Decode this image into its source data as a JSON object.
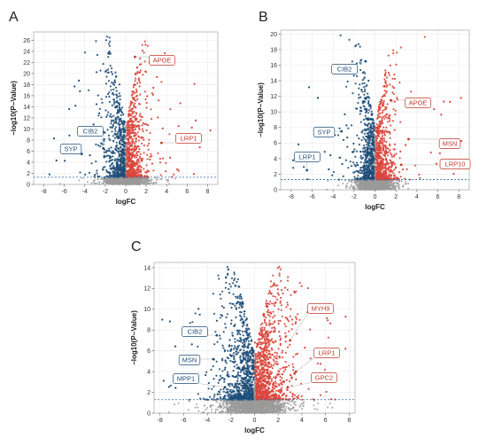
{
  "panels": [
    {
      "letter": "A",
      "xlabel": "logFC",
      "ylabel": "−log10(P−Value)",
      "xticks": [
        -8,
        -6,
        -4,
        -2,
        0,
        2,
        4,
        6,
        8
      ],
      "yticks": [
        0,
        2,
        4,
        6,
        8,
        10,
        12,
        14,
        16,
        18,
        20,
        22,
        24,
        26
      ],
      "labels": [
        {
          "text": "APOE",
          "side": "up"
        },
        {
          "text": "LRP1",
          "side": "up"
        },
        {
          "text": "CIB2",
          "side": "down"
        },
        {
          "text": "SYP",
          "side": "down"
        }
      ]
    },
    {
      "letter": "B",
      "xlabel": "logFC",
      "ylabel": "−log10(P−Value)",
      "xticks": [
        -8,
        -6,
        -4,
        -2,
        0,
        2,
        4,
        6,
        8
      ],
      "yticks": [
        0,
        2,
        4,
        6,
        8,
        10,
        12,
        14,
        16,
        18,
        20
      ],
      "labels": [
        {
          "text": "CIB2",
          "side": "down"
        },
        {
          "text": "SYP",
          "side": "down"
        },
        {
          "text": "LRP1",
          "side": "down"
        },
        {
          "text": "APOE",
          "side": "up"
        },
        {
          "text": "MSN",
          "side": "up"
        },
        {
          "text": "LRP10",
          "side": "up"
        }
      ]
    },
    {
      "letter": "C",
      "xlabel": "logFC",
      "ylabel": "−log10(P−Value)",
      "xticks": [
        -8,
        -6,
        -4,
        -2,
        0,
        2,
        4,
        6,
        8
      ],
      "yticks": [
        0,
        2,
        4,
        6,
        8,
        10,
        12,
        14
      ],
      "labels": [
        {
          "text": "CIB2",
          "side": "down"
        },
        {
          "text": "MSN",
          "side": "down"
        },
        {
          "text": "MPP1",
          "side": "down"
        },
        {
          "text": "MYH9",
          "side": "up"
        },
        {
          "text": "LRP1",
          "side": "up"
        },
        {
          "text": "GPC2",
          "side": "up"
        }
      ]
    }
  ],
  "chart_data": [
    {
      "type": "scatter",
      "panel": "A",
      "title": "",
      "xlabel": "logFC",
      "ylabel": "−log10(P−Value)",
      "xlim": [
        -9,
        9
      ],
      "ylim": [
        0,
        27.5
      ],
      "threshold_y": 1.3,
      "grid": true,
      "series": [
        {
          "group": "down",
          "color": "#1f4e79"
        },
        {
          "group": "up",
          "color": "#d9453b"
        },
        {
          "group": "ns",
          "color": "#9a9a9a"
        }
      ],
      "labeled_points": [
        {
          "gene": "APOE",
          "x": 0.9,
          "y": 23.0,
          "group": "up"
        },
        {
          "gene": "LRP1",
          "x": 3.5,
          "y": 7.5,
          "group": "up"
        },
        {
          "gene": "CIB2",
          "x": -2.2,
          "y": 6.5,
          "group": "down"
        },
        {
          "gene": "SYP",
          "x": -4.3,
          "y": 5.5,
          "group": "down"
        }
      ]
    },
    {
      "type": "scatter",
      "panel": "B",
      "title": "",
      "xlabel": "logFC",
      "ylabel": "−log10(P−Value)",
      "xlim": [
        -9,
        9
      ],
      "ylim": [
        0,
        20.5
      ],
      "threshold_y": 1.3,
      "grid": true,
      "series": [
        {
          "group": "down",
          "color": "#1f4e79"
        },
        {
          "group": "up",
          "color": "#d9453b"
        },
        {
          "group": "ns",
          "color": "#9a9a9a"
        }
      ],
      "labeled_points": [
        {
          "gene": "CIB2",
          "x": -0.9,
          "y": 16.5,
          "group": "down"
        },
        {
          "gene": "SYP",
          "x": -3.2,
          "y": 7.5,
          "group": "down"
        },
        {
          "gene": "LRP1",
          "x": -6.5,
          "y": 2.5,
          "group": "down"
        },
        {
          "gene": "APOE",
          "x": 1.5,
          "y": 11.5,
          "group": "up"
        },
        {
          "gene": "MSN",
          "x": 3.2,
          "y": 6.5,
          "group": "up"
        },
        {
          "gene": "LRP10",
          "x": 2.5,
          "y": 3.2,
          "group": "up"
        }
      ]
    },
    {
      "type": "scatter",
      "panel": "C",
      "title": "",
      "xlabel": "logFC",
      "ylabel": "−log10(P−Value)",
      "xlim": [
        -8.5,
        8.5
      ],
      "ylim": [
        0,
        14.5
      ],
      "threshold_y": 1.3,
      "grid": true,
      "series": [
        {
          "group": "down",
          "color": "#1f4e79"
        },
        {
          "group": "up",
          "color": "#d9453b"
        },
        {
          "group": "ns",
          "color": "#9a9a9a"
        }
      ],
      "labeled_points": [
        {
          "gene": "CIB2",
          "x": -3.2,
          "y": 7.5,
          "group": "down"
        },
        {
          "gene": "MSN",
          "x": -3.5,
          "y": 5.2,
          "group": "down"
        },
        {
          "gene": "MPP1",
          "x": -2.5,
          "y": 2.5,
          "group": "down"
        },
        {
          "gene": "MYH9",
          "x": 3.0,
          "y": 7.0,
          "group": "up"
        },
        {
          "gene": "LRP1",
          "x": 3.5,
          "y": 4.0,
          "group": "up"
        },
        {
          "gene": "GPC2",
          "x": 2.8,
          "y": 2.5,
          "group": "up"
        }
      ]
    }
  ]
}
